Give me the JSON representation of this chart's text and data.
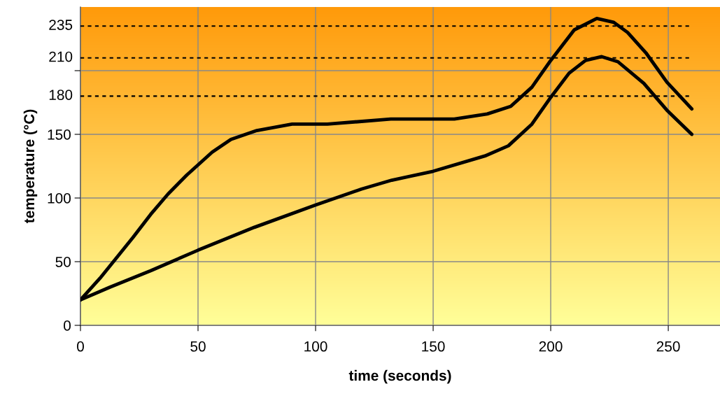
{
  "chart_data": {
    "type": "line",
    "xlabel": "time (seconds)",
    "ylabel": "temperature (°C)",
    "xlim": [
      0,
      272
    ],
    "xticks": [
      0,
      50,
      100,
      150,
      200,
      250
    ],
    "ylim": [
      0,
      250
    ],
    "yticks": [
      0,
      50,
      100,
      150,
      {
        "value": 200,
        "label": null
      }
    ],
    "grid": true,
    "marker": "none",
    "line_style": "solid",
    "ref_lines": [
      {
        "axis": "y",
        "value": 180,
        "label": "180",
        "color": "#000000",
        "line_style": "dashed"
      },
      {
        "axis": "y",
        "value": 210,
        "label": "210",
        "color": "#000000",
        "line_style": "dashed"
      },
      {
        "axis": "y",
        "value": 235,
        "label": "235",
        "color": "#000000",
        "line_style": "dashed"
      }
    ],
    "series": [
      {
        "color": "#000000",
        "x": [
          0,
          8.3,
          22.3,
          29.8,
          37.2,
          45.2,
          56,
          64,
          75,
          90,
          105,
          132,
          159,
          173,
          183,
          192,
          200,
          210,
          219.6,
          226.8,
          232.7,
          240.5,
          249.4,
          260
        ],
        "values": [
          20,
          37,
          69,
          87,
          103,
          118,
          136,
          146,
          153,
          158,
          158,
          162,
          162,
          166,
          172,
          187,
          208,
          232,
          241,
          238,
          230,
          214,
          191,
          170
        ]
      },
      {
        "color": "#000000",
        "x": [
          0,
          12.5,
          30,
          50,
          74,
          100,
          119.5,
          132.4,
          150,
          172,
          182,
          192,
          200,
          207.8,
          214.8,
          221.7,
          228.6,
          239.6,
          249.4,
          260
        ],
        "values": [
          20,
          30,
          43,
          59,
          77,
          94.5,
          107,
          114,
          121,
          133,
          141,
          158,
          179,
          198,
          208,
          211,
          207,
          190,
          169,
          150
        ]
      }
    ]
  }
}
